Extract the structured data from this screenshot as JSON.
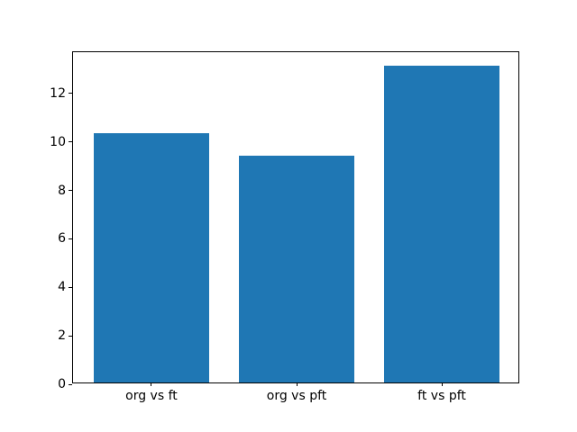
{
  "figure": {
    "background_color": "#ffffff",
    "spine_color": "#000000",
    "tick_color": "#000000",
    "label_color": "#000000"
  },
  "chart_data": {
    "type": "bar",
    "title": "",
    "xlabel": "",
    "ylabel": "",
    "categories": [
      "org vs ft",
      "org vs pft",
      "ft vs pft"
    ],
    "values": [
      10.3,
      9.37,
      13.08
    ],
    "bar_color": "#1f77b4",
    "bar_width_fraction": 0.8,
    "ylim": [
      0,
      13.7
    ],
    "yticks": [
      0,
      2,
      4,
      6,
      8,
      10,
      12
    ],
    "grid": false,
    "legend": null
  }
}
